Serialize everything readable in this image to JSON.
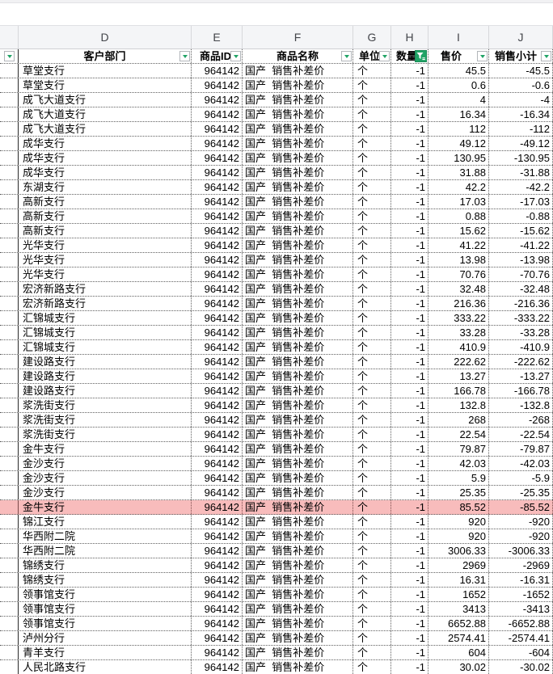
{
  "window": {
    "app_context": "spreadsheet-grid"
  },
  "colors": {
    "accent_green": "#21a366",
    "highlight_row_bg": "#f8bcbc",
    "letters_row_bg": "#f4f5f7",
    "grid_dot_border": "#5f5f5f"
  },
  "sheet": {
    "column_letters": [
      "D",
      "E",
      "F",
      "G",
      "H",
      "I",
      "J"
    ],
    "headers": {
      "dept": "客户部门",
      "product_id": "商品ID",
      "product_name": "商品名称",
      "unit": "单位",
      "quantity": "数量",
      "price": "售价",
      "subtotal": "销售小计"
    },
    "product_id": "964142",
    "product_name": "国产  销售补差价",
    "unit": "个",
    "quantity": "-1",
    "rows": [
      {
        "dept": "草堂支行",
        "price": "45.5",
        "subtotal": "-45.5",
        "highlight": false
      },
      {
        "dept": "草堂支行",
        "price": "0.6",
        "subtotal": "-0.6",
        "highlight": false
      },
      {
        "dept": "成飞大道支行",
        "price": "4",
        "subtotal": "-4",
        "highlight": false
      },
      {
        "dept": "成飞大道支行",
        "price": "16.34",
        "subtotal": "-16.34",
        "highlight": false
      },
      {
        "dept": "成飞大道支行",
        "price": "112",
        "subtotal": "-112",
        "highlight": false
      },
      {
        "dept": "成华支行",
        "price": "49.12",
        "subtotal": "-49.12",
        "highlight": false
      },
      {
        "dept": "成华支行",
        "price": "130.95",
        "subtotal": "-130.95",
        "highlight": false
      },
      {
        "dept": "成华支行",
        "price": "31.88",
        "subtotal": "-31.88",
        "highlight": false
      },
      {
        "dept": "东湖支行",
        "price": "42.2",
        "subtotal": "-42.2",
        "highlight": false
      },
      {
        "dept": "高新支行",
        "price": "17.03",
        "subtotal": "-17.03",
        "highlight": false
      },
      {
        "dept": "高新支行",
        "price": "0.88",
        "subtotal": "-0.88",
        "highlight": false
      },
      {
        "dept": "高新支行",
        "price": "15.62",
        "subtotal": "-15.62",
        "highlight": false
      },
      {
        "dept": "光华支行",
        "price": "41.22",
        "subtotal": "-41.22",
        "highlight": false
      },
      {
        "dept": "光华支行",
        "price": "13.98",
        "subtotal": "-13.98",
        "highlight": false
      },
      {
        "dept": "光华支行",
        "price": "70.76",
        "subtotal": "-70.76",
        "highlight": false
      },
      {
        "dept": "宏济新路支行",
        "price": "32.48",
        "subtotal": "-32.48",
        "highlight": false
      },
      {
        "dept": "宏济新路支行",
        "price": "216.36",
        "subtotal": "-216.36",
        "highlight": false
      },
      {
        "dept": "汇锦城支行",
        "price": "333.22",
        "subtotal": "-333.22",
        "highlight": false
      },
      {
        "dept": "汇锦城支行",
        "price": "33.28",
        "subtotal": "-33.28",
        "highlight": false
      },
      {
        "dept": "汇锦城支行",
        "price": "410.9",
        "subtotal": "-410.9",
        "highlight": false
      },
      {
        "dept": "建设路支行",
        "price": "222.62",
        "subtotal": "-222.62",
        "highlight": false
      },
      {
        "dept": "建设路支行",
        "price": "13.27",
        "subtotal": "-13.27",
        "highlight": false
      },
      {
        "dept": "建设路支行",
        "price": "166.78",
        "subtotal": "-166.78",
        "highlight": false
      },
      {
        "dept": "浆洗街支行",
        "price": "132.8",
        "subtotal": "-132.8",
        "highlight": false
      },
      {
        "dept": "浆洗街支行",
        "price": "268",
        "subtotal": "-268",
        "highlight": false
      },
      {
        "dept": "浆洗街支行",
        "price": "22.54",
        "subtotal": "-22.54",
        "highlight": false
      },
      {
        "dept": "金牛支行",
        "price": "79.87",
        "subtotal": "-79.87",
        "highlight": false
      },
      {
        "dept": "金沙支行",
        "price": "42.03",
        "subtotal": "-42.03",
        "highlight": false
      },
      {
        "dept": "金沙支行",
        "price": "5.9",
        "subtotal": "-5.9",
        "highlight": false
      },
      {
        "dept": "金沙支行",
        "price": "25.35",
        "subtotal": "-25.35",
        "highlight": false
      },
      {
        "dept": "金牛支行",
        "price": "85.52",
        "subtotal": "-85.52",
        "highlight": true
      },
      {
        "dept": "锦江支行",
        "price": "920",
        "subtotal": "-920",
        "highlight": false
      },
      {
        "dept": "华西附二院",
        "price": "920",
        "subtotal": "-920",
        "highlight": false
      },
      {
        "dept": "华西附二院",
        "price": "3006.33",
        "subtotal": "-3006.33",
        "highlight": false
      },
      {
        "dept": "锦绣支行",
        "price": "2969",
        "subtotal": "-2969",
        "highlight": false
      },
      {
        "dept": "锦绣支行",
        "price": "16.31",
        "subtotal": "-16.31",
        "highlight": false
      },
      {
        "dept": "领事馆支行",
        "price": "1652",
        "subtotal": "-1652",
        "highlight": false
      },
      {
        "dept": "领事馆支行",
        "price": "3413",
        "subtotal": "-3413",
        "highlight": false
      },
      {
        "dept": "领事馆支行",
        "price": "6652.88",
        "subtotal": "-6652.88",
        "highlight": false
      },
      {
        "dept": "泸州分行",
        "price": "2574.41",
        "subtotal": "-2574.41",
        "highlight": false
      },
      {
        "dept": "青羊支行",
        "price": "604",
        "subtotal": "-604",
        "highlight": false
      },
      {
        "dept": "人民北路支行",
        "price": "30.02",
        "subtotal": "-30.02",
        "highlight": false
      }
    ]
  }
}
